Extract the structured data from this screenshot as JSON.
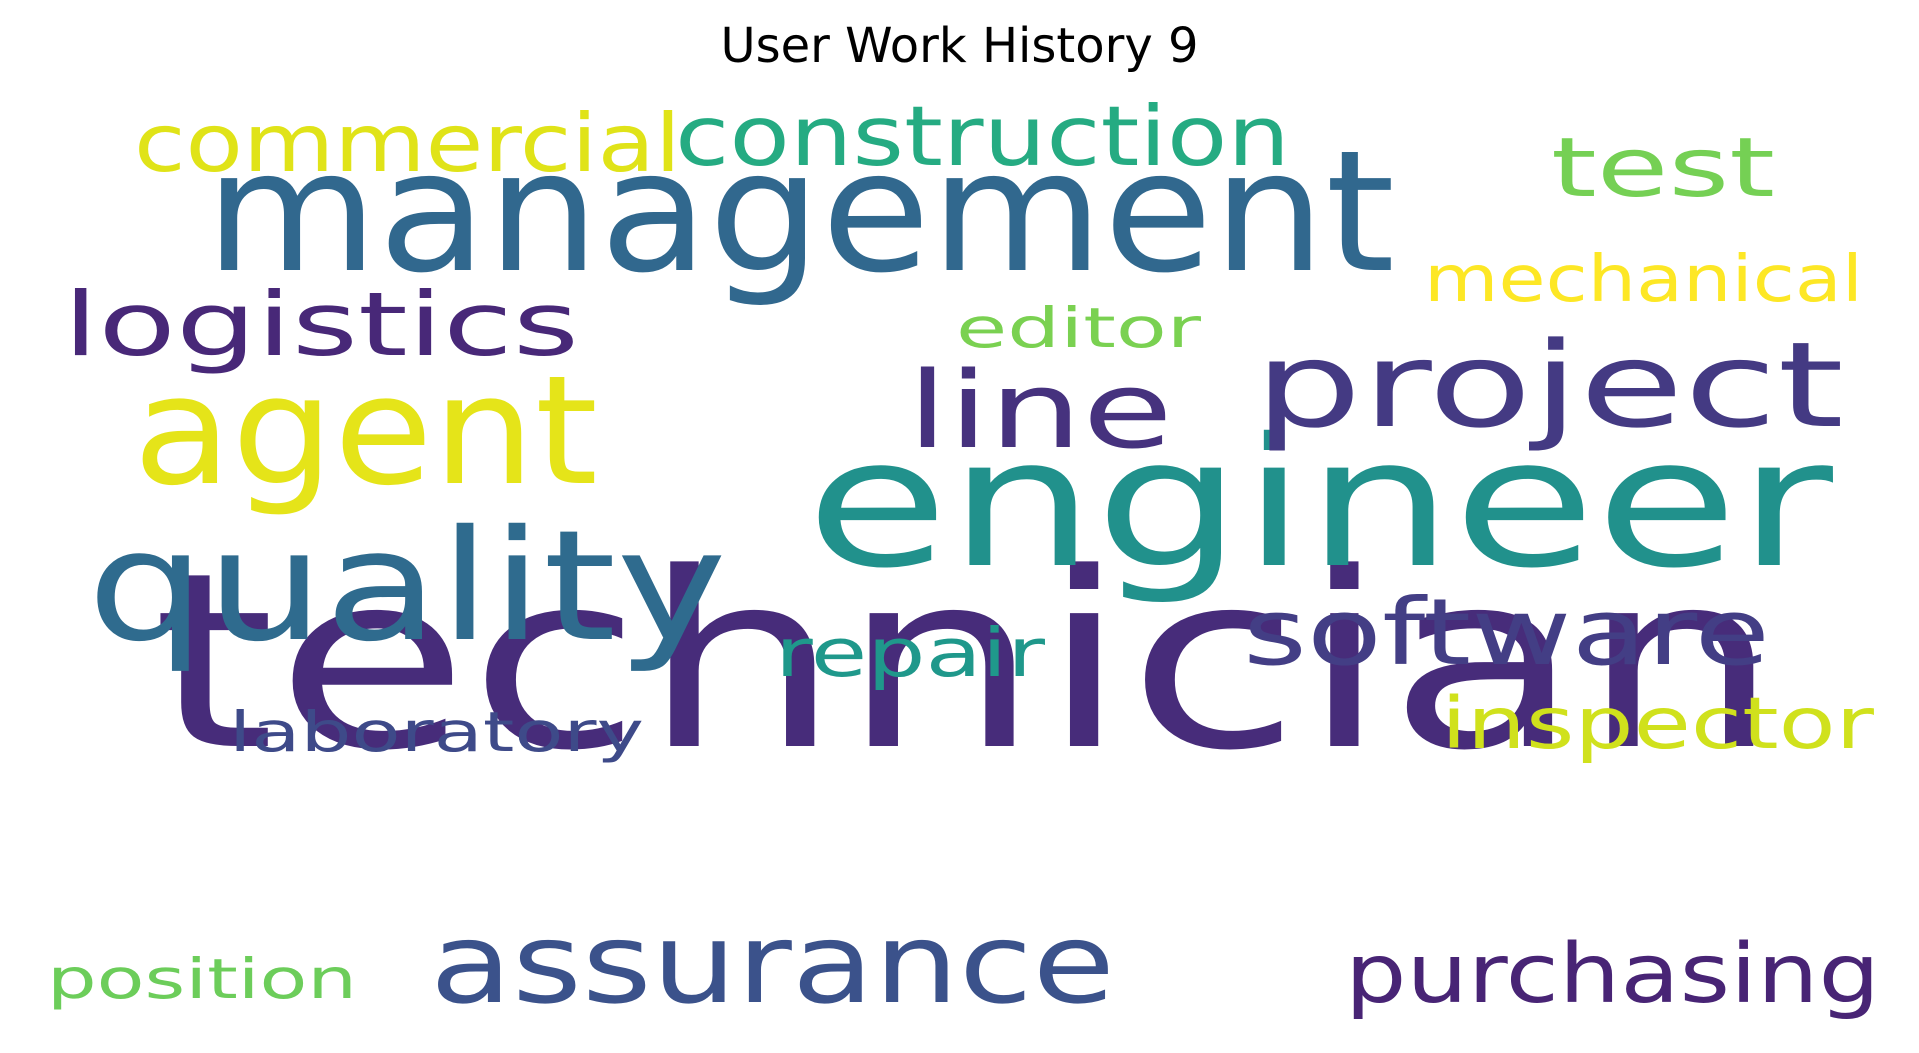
{
  "title": "User Work History 9",
  "words": [
    {
      "text": "technician",
      "color": "#472c7a"
    },
    {
      "text": "management",
      "color": "#31688e"
    },
    {
      "text": "engineer",
      "color": "#21918c"
    },
    {
      "text": "quality",
      "color": "#2f6b8e"
    },
    {
      "text": "agent",
      "color": "#e5e419"
    },
    {
      "text": "project",
      "color": "#443a83"
    },
    {
      "text": "assurance",
      "color": "#3b528b"
    },
    {
      "text": "software",
      "color": "#433e85"
    },
    {
      "text": "line",
      "color": "#46327e"
    },
    {
      "text": "logistics",
      "color": "#482878"
    },
    {
      "text": "construction",
      "color": "#25ab82"
    },
    {
      "text": "commercial",
      "color": "#e0e318"
    },
    {
      "text": "test",
      "color": "#75d054"
    },
    {
      "text": "purchasing",
      "color": "#482475"
    },
    {
      "text": "inspector",
      "color": "#d0e11c"
    },
    {
      "text": "mechanical",
      "color": "#fde725"
    },
    {
      "text": "repair",
      "color": "#1f988b"
    },
    {
      "text": "laboratory",
      "color": "#3e4a89"
    },
    {
      "text": "editor",
      "color": "#7ad151"
    },
    {
      "text": "position",
      "color": "#6ccd5a"
    }
  ]
}
